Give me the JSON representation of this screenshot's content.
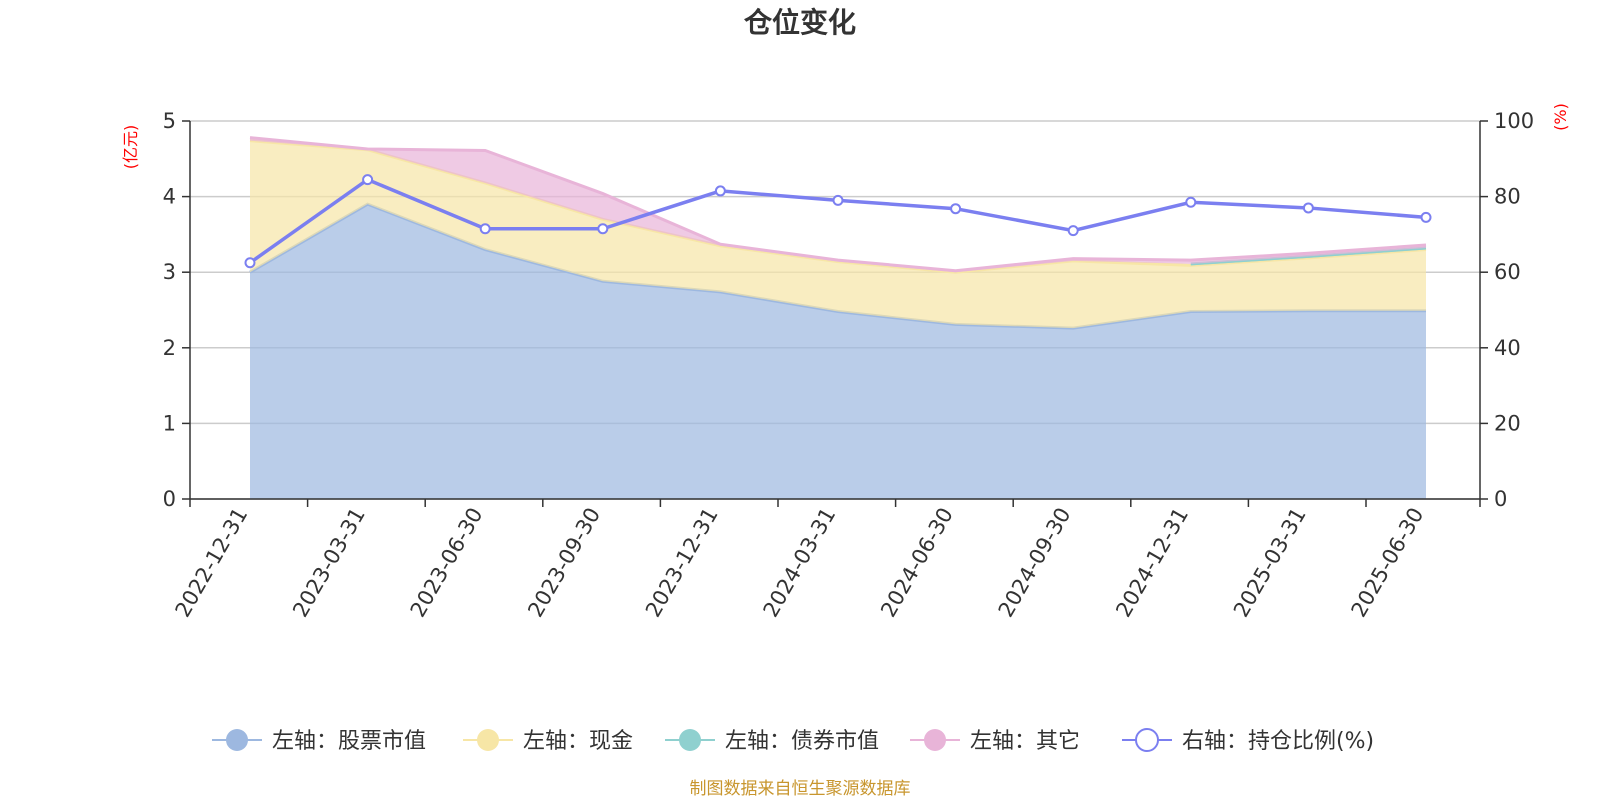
{
  "chart_data": {
    "type": "area",
    "title": "仓位变化",
    "categories": [
      "2022-12-31",
      "2023-03-31",
      "2023-06-30",
      "2023-09-30",
      "2023-12-31",
      "2024-03-31",
      "2024-06-30",
      "2024-09-30",
      "2024-12-31",
      "2025-03-31",
      "2025-06-30"
    ],
    "left_axis": {
      "unit": "(亿元)",
      "ylim": [
        0,
        5
      ],
      "ticks": [
        "0",
        "1",
        "2",
        "3",
        "4",
        "5"
      ]
    },
    "right_axis": {
      "unit": "(%)",
      "ylim": [
        0,
        100
      ],
      "ticks": [
        "0",
        "20",
        "40",
        "60",
        "80",
        "100"
      ]
    },
    "series": [
      {
        "name": "左轴：股票市值",
        "axis": "left",
        "kind": "area",
        "color": "#9db8e0",
        "values": [
          3.0,
          3.9,
          3.3,
          2.88,
          2.74,
          2.48,
          2.31,
          2.26,
          2.48,
          2.49,
          2.49
        ]
      },
      {
        "name": "左轴：现金",
        "axis": "left",
        "kind": "area",
        "color": "#f7e6a6",
        "values": [
          1.74,
          0.72,
          0.88,
          0.82,
          0.61,
          0.66,
          0.69,
          0.89,
          0.61,
          0.7,
          0.81
        ]
      },
      {
        "name": "左轴：债券市值",
        "axis": "left",
        "kind": "area",
        "color": "#8fd0cf",
        "values": [
          null,
          null,
          null,
          null,
          null,
          null,
          null,
          null,
          0.02,
          0.02,
          0.02
        ]
      },
      {
        "name": "左轴：其它",
        "axis": "left",
        "kind": "area",
        "color": "#e8b4d8",
        "values": [
          0.04,
          0.01,
          0.43,
          0.34,
          0.02,
          0.02,
          0.02,
          0.03,
          0.05,
          0.04,
          0.04
        ]
      },
      {
        "name": "右轴：持仓比例(%)",
        "axis": "right",
        "kind": "line",
        "color": "#7b7ff0",
        "values": [
          62.5,
          84.5,
          71.5,
          71.5,
          81.5,
          79.0,
          76.8,
          71.0,
          78.5,
          77.0,
          74.5
        ]
      }
    ],
    "grid": true,
    "legend_position": "bottom"
  },
  "source_note": "制图数据来自恒生聚源数据库"
}
